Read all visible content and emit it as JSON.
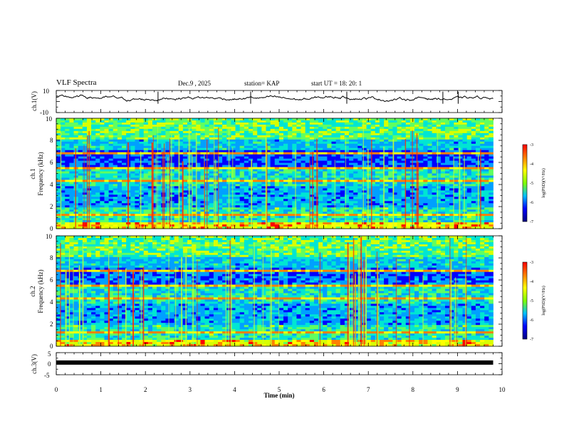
{
  "header": {
    "title": "VLF Spectra",
    "date": "Dec.9  , 2025",
    "station": "station= KAP",
    "start_ut": "start  UT  =   18: 20: 1"
  },
  "chart_data": {
    "type": "heatmap",
    "x_axis": {
      "label": "Time  (min)",
      "range": [
        0,
        10
      ],
      "ticks": [
        "0",
        "1",
        "2",
        "3",
        "4",
        "5",
        "6",
        "7",
        "8",
        "9",
        "10"
      ]
    },
    "data_end_min": 9.8,
    "panels": [
      {
        "id": "ch1-waveform",
        "type": "line",
        "ylabel": "ch.1(V)",
        "yrange": [
          -10,
          10
        ],
        "ytick_labels": [
          "10",
          "-10"
        ]
      },
      {
        "id": "ch1-spectrogram",
        "type": "heatmap",
        "ylabel_channel": "ch.1",
        "ylabel": "Frequency  (kHz)",
        "yrange": [
          0,
          10
        ],
        "ytick_labels": [
          "0",
          "2",
          "4",
          "6",
          "8",
          "10"
        ]
      },
      {
        "id": "ch2-spectrogram",
        "type": "heatmap",
        "ylabel_channel": "ch.2",
        "ylabel": "Frequency  (kHz)",
        "yrange": [
          0,
          10
        ],
        "ytick_labels": [
          "0",
          "2",
          "4",
          "6",
          "8",
          "10"
        ]
      },
      {
        "id": "ch3-waveform",
        "type": "line",
        "ylabel": "ch.3(V)",
        "yrange": [
          -5,
          5
        ],
        "ytick_labels": [
          "5",
          "0",
          "-5"
        ]
      }
    ],
    "colorbar": {
      "label": "log(PSD)(V²/Hz)",
      "range": [
        -7,
        -3
      ],
      "tick_labels": [
        "-3",
        "-4",
        "-5",
        "-6",
        "-7"
      ],
      "colormap": [
        "#00007f",
        "#0000ff",
        "#00bfff",
        "#00ffbf",
        "#7fff00",
        "#ffff00",
        "#ff7f00",
        "#ff0000",
        "#ff9fb0",
        "#ffffff"
      ]
    },
    "ch1_line": {
      "baseline_V": 3,
      "amplitude_V": 3
    },
    "ch3_line": {
      "value_V": 0.5
    }
  }
}
